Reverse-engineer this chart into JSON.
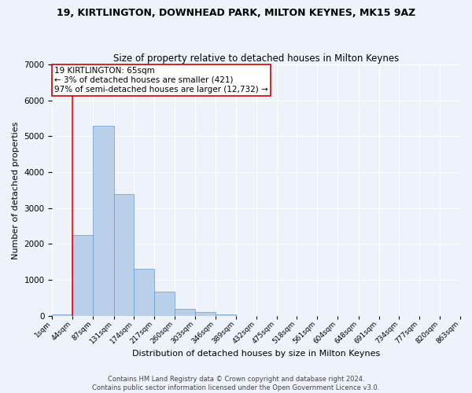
{
  "title": "19, KIRTLINGTON, DOWNHEAD PARK, MILTON KEYNES, MK15 9AZ",
  "subtitle": "Size of property relative to detached houses in Milton Keynes",
  "xlabel": "Distribution of detached houses by size in Milton Keynes",
  "ylabel": "Number of detached properties",
  "annotation_line1": "19 KIRTLINGTON: 65sqm",
  "annotation_line2": "← 3% of detached houses are smaller (421)",
  "annotation_line3": "97% of semi-detached houses are larger (12,732) →",
  "footer_line1": "Contains HM Land Registry data © Crown copyright and database right 2024.",
  "footer_line2": "Contains public sector information licensed under the Open Government Licence v3.0.",
  "bar_color": "#b8d0ea",
  "bar_edge_color": "#6699cc",
  "red_line_x": 1,
  "bin_edges": [
    1,
    44,
    87,
    131,
    174,
    217,
    260,
    303,
    346,
    389,
    432,
    475,
    518,
    561,
    604,
    648,
    691,
    734,
    777,
    820,
    863
  ],
  "bar_heights": [
    50,
    2250,
    5300,
    3400,
    1300,
    680,
    200,
    110,
    50,
    5,
    1,
    0,
    0,
    0,
    0,
    0,
    0,
    0,
    0,
    0
  ],
  "tick_labels": [
    "1sqm",
    "44sqm",
    "87sqm",
    "131sqm",
    "174sqm",
    "217sqm",
    "260sqm",
    "303sqm",
    "346sqm",
    "389sqm",
    "432sqm",
    "475sqm",
    "518sqm",
    "561sqm",
    "604sqm",
    "648sqm",
    "691sqm",
    "734sqm",
    "777sqm",
    "820sqm",
    "863sqm"
  ],
  "ylim": [
    0,
    7000
  ],
  "background_color": "#eef2fb",
  "grid_color": "#ffffff",
  "title_fontsize": 9,
  "subtitle_fontsize": 8.5,
  "ylabel_fontsize": 8,
  "xlabel_fontsize": 8,
  "annotation_fontsize": 7.5,
  "annotation_box_color": "#ffffff",
  "annotation_box_edge": "#cc0000",
  "footer_fontsize": 6
}
